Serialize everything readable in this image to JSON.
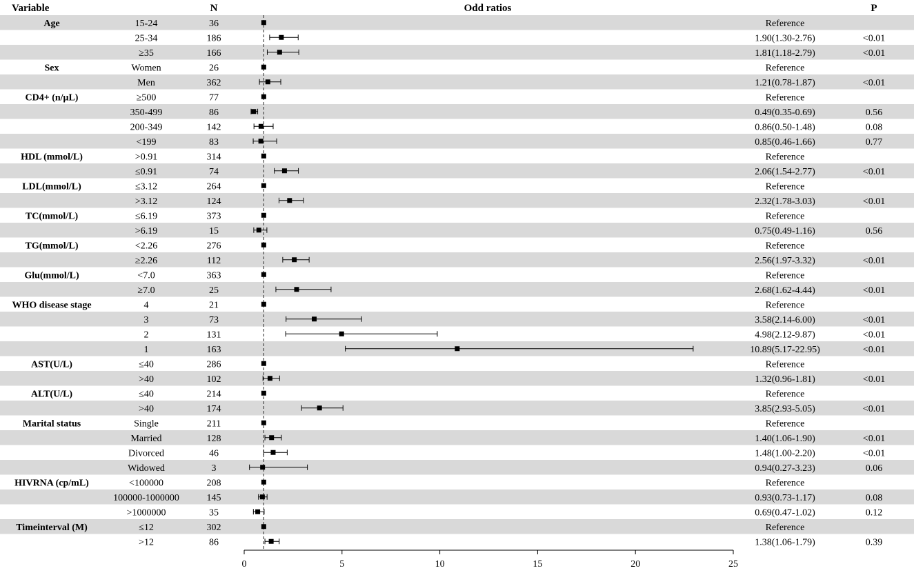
{
  "headers": {
    "variable": "Variable",
    "n": "N",
    "or": "Odd ratios",
    "p": "P"
  },
  "chart_data": {
    "type": "forest",
    "xlim": [
      0,
      25
    ],
    "x_ticks": [
      0,
      5,
      10,
      15,
      20,
      25
    ],
    "reference_line": 1,
    "rows": [
      {
        "variable": "Age",
        "level": "15-24",
        "n": "36",
        "or": 1,
        "lo": null,
        "hi": null,
        "label": "Reference",
        "p": ""
      },
      {
        "variable": "",
        "level": "25-34",
        "n": "186",
        "or": 1.9,
        "lo": 1.3,
        "hi": 2.76,
        "label": "1.90(1.30-2.76)",
        "p": "<0.01"
      },
      {
        "variable": "",
        "level": "≥35",
        "n": "166",
        "or": 1.81,
        "lo": 1.18,
        "hi": 2.79,
        "label": "1.81(1.18-2.79)",
        "p": "<0.01"
      },
      {
        "variable": "Sex",
        "level": "Women",
        "n": "26",
        "or": 1,
        "lo": null,
        "hi": null,
        "label": "Reference",
        "p": ""
      },
      {
        "variable": "",
        "level": "Men",
        "n": "362",
        "or": 1.21,
        "lo": 0.78,
        "hi": 1.87,
        "label": "1.21(0.78-1.87)",
        "p": "<0.01"
      },
      {
        "variable": "CD4+ (n/μL)",
        "level": "≥500",
        "n": "77",
        "or": 1,
        "lo": null,
        "hi": null,
        "label": "Reference",
        "p": ""
      },
      {
        "variable": "",
        "level": "350-499",
        "n": "86",
        "or": 0.49,
        "lo": 0.35,
        "hi": 0.69,
        "label": "0.49(0.35-0.69)",
        "p": "0.56"
      },
      {
        "variable": "",
        "level": "200-349",
        "n": "142",
        "or": 0.86,
        "lo": 0.5,
        "hi": 1.48,
        "label": "0.86(0.50-1.48)",
        "p": "0.08"
      },
      {
        "variable": "",
        "level": "<199",
        "n": "83",
        "or": 0.85,
        "lo": 0.46,
        "hi": 1.66,
        "label": "0.85(0.46-1.66)",
        "p": "0.77"
      },
      {
        "variable": "HDL (mmol/L)",
        "level": ">0.91",
        "n": "314",
        "or": 1,
        "lo": null,
        "hi": null,
        "label": "Reference",
        "p": ""
      },
      {
        "variable": "",
        "level": "≤0.91",
        "n": "74",
        "or": 2.06,
        "lo": 1.54,
        "hi": 2.77,
        "label": "2.06(1.54-2.77)",
        "p": "<0.01"
      },
      {
        "variable": "LDL(mmol/L)",
        "level": "≤3.12",
        "n": "264",
        "or": 1,
        "lo": null,
        "hi": null,
        "label": "Reference",
        "p": ""
      },
      {
        "variable": "",
        "level": ">3.12",
        "n": "124",
        "or": 2.32,
        "lo": 1.78,
        "hi": 3.03,
        "label": "2.32(1.78-3.03)",
        "p": "<0.01"
      },
      {
        "variable": "TC(mmol/L)",
        "level": "≤6.19",
        "n": "373",
        "or": 1,
        "lo": null,
        "hi": null,
        "label": "Reference",
        "p": ""
      },
      {
        "variable": "",
        "level": ">6.19",
        "n": "15",
        "or": 0.75,
        "lo": 0.49,
        "hi": 1.16,
        "label": "0.75(0.49-1.16)",
        "p": "0.56"
      },
      {
        "variable": "TG(mmol/L)",
        "level": "<2.26",
        "n": "276",
        "or": 1,
        "lo": null,
        "hi": null,
        "label": "Reference",
        "p": ""
      },
      {
        "variable": "",
        "level": "≥2.26",
        "n": "112",
        "or": 2.56,
        "lo": 1.97,
        "hi": 3.32,
        "label": "2.56(1.97-3.32)",
        "p": "<0.01"
      },
      {
        "variable": "Glu(mmol/L)",
        "level": "<7.0",
        "n": "363",
        "or": 1,
        "lo": null,
        "hi": null,
        "label": "Reference",
        "p": ""
      },
      {
        "variable": "",
        "level": "≥7.0",
        "n": "25",
        "or": 2.68,
        "lo": 1.62,
        "hi": 4.44,
        "label": "2.68(1.62-4.44)",
        "p": "<0.01"
      },
      {
        "variable": "WHO disease stage",
        "level": "4",
        "n": "21",
        "or": 1,
        "lo": null,
        "hi": null,
        "label": "Reference",
        "p": ""
      },
      {
        "variable": "",
        "level": "3",
        "n": "73",
        "or": 3.58,
        "lo": 2.14,
        "hi": 6.0,
        "label": "3.58(2.14-6.00)",
        "p": "<0.01"
      },
      {
        "variable": "",
        "level": "2",
        "n": "131",
        "or": 4.98,
        "lo": 2.12,
        "hi": 9.87,
        "label": "4.98(2.12-9.87)",
        "p": "<0.01"
      },
      {
        "variable": "",
        "level": "1",
        "n": "163",
        "or": 10.89,
        "lo": 5.17,
        "hi": 22.95,
        "label": "10.89(5.17-22.95)",
        "p": "<0.01"
      },
      {
        "variable": "AST(U/L)",
        "level": "≤40",
        "n": "286",
        "or": 1,
        "lo": null,
        "hi": null,
        "label": "Reference",
        "p": ""
      },
      {
        "variable": "",
        "level": ">40",
        "n": "102",
        "or": 1.32,
        "lo": 0.96,
        "hi": 1.81,
        "label": "1.32(0.96-1.81)",
        "p": "<0.01"
      },
      {
        "variable": "ALT(U/L)",
        "level": "≤40",
        "n": "214",
        "or": 1,
        "lo": null,
        "hi": null,
        "label": "Reference",
        "p": ""
      },
      {
        "variable": "",
        "level": ">40",
        "n": "174",
        "or": 3.85,
        "lo": 2.93,
        "hi": 5.05,
        "label": "3.85(2.93-5.05)",
        "p": "<0.01"
      },
      {
        "variable": "Marital status",
        "level": "Single",
        "n": "211",
        "or": 1,
        "lo": null,
        "hi": null,
        "label": "Reference",
        "p": ""
      },
      {
        "variable": "",
        "level": "Married",
        "n": "128",
        "or": 1.4,
        "lo": 1.06,
        "hi": 1.9,
        "label": "1.40(1.06-1.90)",
        "p": "<0.01"
      },
      {
        "variable": "",
        "level": "Divorced",
        "n": "46",
        "or": 1.48,
        "lo": 1.0,
        "hi": 2.2,
        "label": "1.48(1.00-2.20)",
        "p": "<0.01"
      },
      {
        "variable": "",
        "level": "Widowed",
        "n": "3",
        "or": 0.94,
        "lo": 0.27,
        "hi": 3.23,
        "label": "0.94(0.27-3.23)",
        "p": "0.06"
      },
      {
        "variable": "HIVRNA (cp/mL)",
        "level": "<100000",
        "n": "208",
        "or": 1,
        "lo": null,
        "hi": null,
        "label": "Reference",
        "p": ""
      },
      {
        "variable": "",
        "level": "100000-1000000",
        "n": "145",
        "or": 0.93,
        "lo": 0.73,
        "hi": 1.17,
        "label": "0.93(0.73-1.17)",
        "p": "0.08"
      },
      {
        "variable": "",
        "level": ">1000000",
        "n": "35",
        "or": 0.69,
        "lo": 0.47,
        "hi": 1.02,
        "label": "0.69(0.47-1.02)",
        "p": "0.12"
      },
      {
        "variable": "Timeinterval (M)",
        "level": "≤12",
        "n": "302",
        "or": 1,
        "lo": null,
        "hi": null,
        "label": "Reference",
        "p": ""
      },
      {
        "variable": "",
        "level": ">12",
        "n": "86",
        "or": 1.38,
        "lo": 1.06,
        "hi": 1.79,
        "label": "1.38(1.06-1.79)",
        "p": "0.39"
      }
    ]
  }
}
